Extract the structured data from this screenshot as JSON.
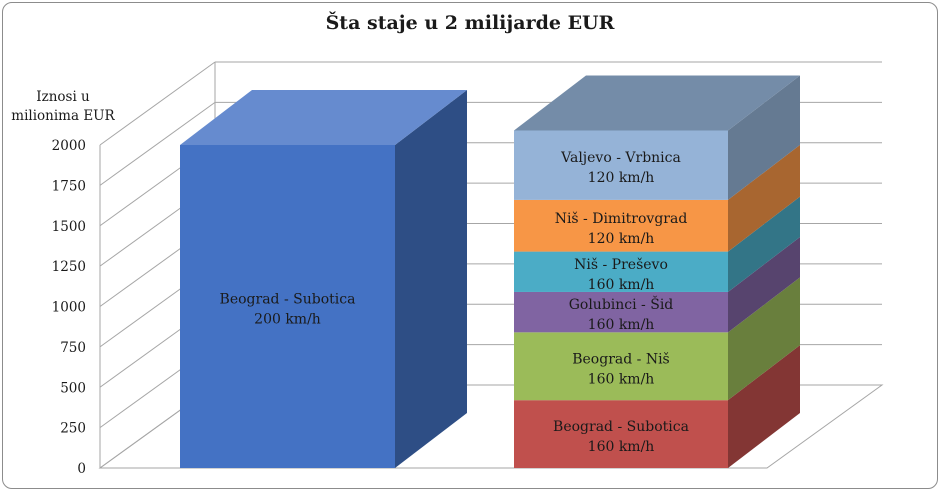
{
  "chart_data": {
    "type": "bar",
    "title": "Šta staje u 2 milijarde EUR",
    "ylabel": "Iznosi u milionima EUR",
    "xlabel": "",
    "ylim": [
      0,
      2000
    ],
    "yticks": [
      0,
      250,
      500,
      750,
      1000,
      1250,
      1500,
      1750,
      2000
    ],
    "grid": true,
    "legend": "none",
    "bars": [
      {
        "segments": [
          {
            "label": "Beograd - Subotica",
            "speed": "200 km/h",
            "value": 2000,
            "color": "#4472c4"
          }
        ]
      },
      {
        "segments": [
          {
            "label": "Beograd - Subotica",
            "speed": "160 km/h",
            "value": 420,
            "color": "#c0504d"
          },
          {
            "label": "Beograd - Niš",
            "speed": "160 km/h",
            "value": 420,
            "color": "#9bbb59"
          },
          {
            "label": "Golubinci - Šid",
            "speed": "160 km/h",
            "value": 250,
            "color": "#8064a2"
          },
          {
            "label": "Niš - Preševo",
            "speed": "160 km/h",
            "value": 250,
            "color": "#4bacc6"
          },
          {
            "label": "Niš - Dimitrovgrad",
            "speed": "120 km/h",
            "value": 320,
            "color": "#f79646"
          },
          {
            "label": "Valjevo - Vrbnica",
            "speed": "120 km/h",
            "value": 430,
            "color": "#95b3d7"
          }
        ]
      }
    ]
  }
}
